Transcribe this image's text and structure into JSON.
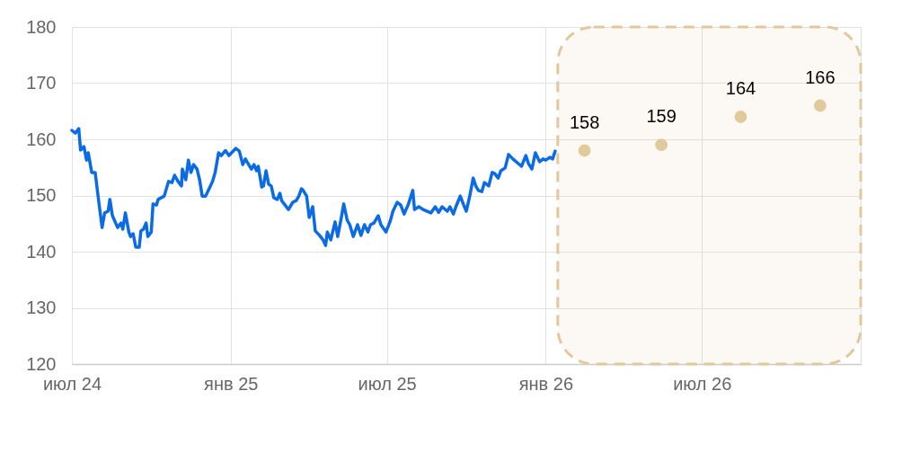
{
  "chart_data": {
    "type": "line",
    "xlim": [
      "2024-07-01",
      "2027-01-01"
    ],
    "xticks": [
      {
        "value": "2024-07-01",
        "label": "июл 24"
      },
      {
        "value": "2025-01-01",
        "label": "янв 25"
      },
      {
        "value": "2025-07-01",
        "label": "июл 25"
      },
      {
        "value": "2026-01-01",
        "label": "янв 26"
      },
      {
        "value": "2026-07-01",
        "label": "июл 26"
      }
    ],
    "ylim": [
      120,
      180
    ],
    "yticks": [
      120,
      130,
      140,
      150,
      160,
      170,
      180
    ],
    "grid": true,
    "bands": [
      {
        "axis": "x",
        "from": "2026-01-15",
        "to": "2027-01-01",
        "color": "#e0c99b"
      }
    ],
    "series": [
      {
        "color": "#0b6be6",
        "line_style": "solid",
        "marker": "none",
        "x": [
          "2024-07-01",
          "2024-07-05",
          "2024-07-09",
          "2024-07-11",
          "2024-07-15",
          "2024-07-18",
          "2024-07-20",
          "2024-07-24",
          "2024-07-28",
          "2024-08-01",
          "2024-08-05",
          "2024-08-08",
          "2024-08-12",
          "2024-08-14",
          "2024-08-17",
          "2024-08-23",
          "2024-08-27",
          "2024-08-29",
          "2024-09-01",
          "2024-09-05",
          "2024-09-07",
          "2024-09-10",
          "2024-09-13",
          "2024-09-17",
          "2024-09-19",
          "2024-09-22",
          "2024-09-25",
          "2024-09-27",
          "2024-10-01",
          "2024-10-03",
          "2024-10-07",
          "2024-10-09",
          "2024-10-16",
          "2024-10-21",
          "2024-10-25",
          "2024-10-28",
          "2024-11-01",
          "2024-11-05",
          "2024-11-06",
          "2024-11-10",
          "2024-11-13",
          "2024-11-16",
          "2024-11-19",
          "2024-11-23",
          "2024-11-26",
          "2024-11-29",
          "2024-12-03",
          "2024-12-07",
          "2024-12-11",
          "2024-12-14",
          "2024-12-18",
          "2024-12-21",
          "2024-12-26",
          "2024-12-30",
          "2025-01-02",
          "2025-01-07",
          "2025-01-11",
          "2025-01-15",
          "2025-01-18",
          "2025-01-25",
          "2025-01-28",
          "2025-01-31",
          "2025-02-02",
          "2025-02-06",
          "2025-02-08",
          "2025-02-11",
          "2025-02-14",
          "2025-02-17",
          "2025-02-20",
          "2025-02-24",
          "2025-02-27",
          "2025-03-01",
          "2025-03-04",
          "2025-03-09",
          "2025-03-14",
          "2025-03-18",
          "2025-03-21",
          "2025-03-24",
          "2025-03-26",
          "2025-03-30",
          "2025-04-02",
          "2025-04-06",
          "2025-04-09",
          "2025-04-14",
          "2025-04-18",
          "2025-04-21",
          "2025-04-23",
          "2025-04-27",
          "2025-05-02",
          "2025-05-05",
          "2025-05-09",
          "2025-05-12",
          "2025-05-16",
          "2025-05-19",
          "2025-05-23",
          "2025-05-28",
          "2025-06-01",
          "2025-06-05",
          "2025-06-09",
          "2025-06-12",
          "2025-06-16",
          "2025-06-21",
          "2025-06-24",
          "2025-06-30",
          "2025-07-05",
          "2025-07-08",
          "2025-07-13",
          "2025-07-17",
          "2025-07-21",
          "2025-07-26",
          "2025-07-31",
          "2025-08-02",
          "2025-08-07",
          "2025-08-12",
          "2025-08-21",
          "2025-08-26",
          "2025-08-30",
          "2025-09-03",
          "2025-09-09",
          "2025-09-12",
          "2025-09-16",
          "2025-09-19",
          "2025-09-24",
          "2025-09-28",
          "2025-10-01",
          "2025-10-05",
          "2025-10-09",
          "2025-10-12",
          "2025-10-15",
          "2025-10-19",
          "2025-10-22",
          "2025-10-27",
          "2025-10-31",
          "2025-11-03",
          "2025-11-07",
          "2025-11-10",
          "2025-11-15",
          "2025-11-19",
          "2025-11-24",
          "2025-12-04",
          "2025-12-09",
          "2025-12-12",
          "2025-12-16",
          "2025-12-20",
          "2025-12-25",
          "2025-12-29",
          "2026-01-01",
          "2026-01-06",
          "2026-01-09",
          "2026-01-12"
        ],
        "values": [
          161.6,
          161.1,
          161.9,
          158.1,
          158.7,
          156.3,
          157.6,
          154.1,
          154.1,
          149.1,
          144.3,
          146.9,
          147.2,
          149.3,
          146.4,
          144.3,
          145.1,
          144.0,
          146.9,
          143.5,
          142.7,
          143.2,
          140.8,
          140.8,
          143.7,
          144.0,
          145.1,
          142.7,
          143.5,
          148.5,
          148.3,
          149.3,
          149.9,
          152.5,
          152.3,
          153.6,
          152.5,
          151.7,
          154.7,
          152.8,
          156.3,
          154.1,
          155.5,
          154.7,
          152.8,
          149.9,
          149.9,
          151.2,
          152.5,
          154.1,
          157.6,
          157.1,
          158.0,
          157.1,
          157.6,
          158.4,
          157.9,
          155.5,
          156.5,
          154.7,
          155.5,
          154.4,
          155.2,
          151.5,
          151.7,
          154.4,
          152.0,
          151.7,
          149.6,
          149.3,
          150.4,
          149.1,
          148.5,
          147.5,
          148.8,
          149.1,
          149.9,
          151.2,
          150.9,
          149.9,
          146.1,
          148.0,
          143.7,
          142.9,
          142.1,
          141.1,
          143.5,
          142.1,
          145.3,
          142.7,
          145.9,
          148.5,
          145.6,
          144.8,
          142.7,
          144.8,
          142.9,
          144.8,
          143.5,
          144.8,
          145.1,
          146.4,
          144.8,
          143.5,
          145.5,
          147.2,
          148.8,
          148.3,
          146.7,
          148.5,
          150.9,
          147.5,
          148.0,
          147.5,
          146.9,
          148.0,
          147.0,
          148.0,
          147.2,
          148.0,
          146.7,
          148.0,
          149.9,
          148.3,
          147.2,
          149.9,
          153.1,
          151.7,
          150.9,
          150.7,
          152.3,
          151.7,
          154.1,
          153.9,
          153.1,
          154.4,
          154.9,
          157.3,
          156.5,
          155.2,
          157.1,
          155.7,
          154.7,
          157.6,
          156.0,
          156.5,
          156.3,
          156.8,
          156.5,
          157.9
        ]
      },
      {
        "type": "scatter",
        "color": "#e0c99b",
        "marker": "circle",
        "x": [
          "2026-02-15",
          "2026-05-15",
          "2026-08-15",
          "2026-11-15"
        ],
        "values": [
          158,
          159,
          164,
          166
        ],
        "value_labels": [
          "158",
          "159",
          "164",
          "166"
        ]
      }
    ]
  }
}
